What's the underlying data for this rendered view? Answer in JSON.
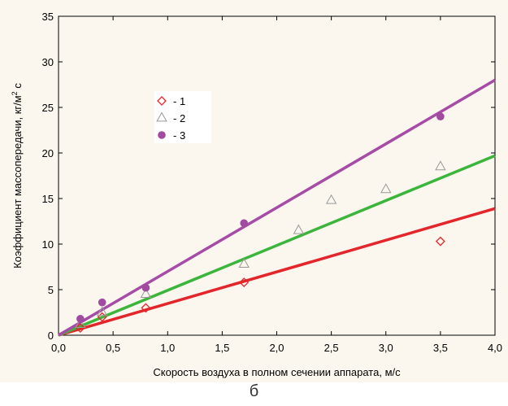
{
  "chart_data": {
    "type": "scatter",
    "xlabel": "Скорость воздуха в полном сечении аппарата, м/с",
    "ylabel": "Коэффициент массопередачи, кг/м",
    "ylabel_sup": "2",
    "ylabel_suffix": "с",
    "xlim": [
      0,
      4
    ],
    "ylim": [
      0,
      35
    ],
    "x_ticks": [
      "0,0",
      "0,5",
      "1,0",
      "1,5",
      "2,0",
      "2,5",
      "3,0",
      "3,5",
      "4,0"
    ],
    "y_ticks": [
      "0",
      "5",
      "10",
      "15",
      "20",
      "25",
      "30",
      "35"
    ],
    "legend_position": "upper-left",
    "grid": false,
    "series": [
      {
        "name": "- 1",
        "marker": "diamond-open",
        "color": "#e8242a",
        "points": [
          [
            0.2,
            0.8
          ],
          [
            0.4,
            2.0
          ],
          [
            0.8,
            3.0
          ],
          [
            1.7,
            5.8
          ],
          [
            3.5,
            10.3
          ]
        ],
        "fit": [
          [
            0,
            0
          ],
          [
            4,
            13.9
          ]
        ]
      },
      {
        "name": "- 2",
        "marker": "triangle-open",
        "color": "#999999",
        "points": [
          [
            0.2,
            1.2
          ],
          [
            0.4,
            2.5
          ],
          [
            0.8,
            4.5
          ],
          [
            1.7,
            7.8
          ],
          [
            2.2,
            11.5
          ],
          [
            2.5,
            14.8
          ],
          [
            3.0,
            16.0
          ],
          [
            3.5,
            18.5
          ]
        ],
        "fit": [
          [
            0,
            0
          ],
          [
            4,
            19.7
          ]
        ]
      },
      {
        "name": "- 3",
        "marker": "circle-filled",
        "color": "#a04aa0",
        "points": [
          [
            0.2,
            1.8
          ],
          [
            0.4,
            3.6
          ],
          [
            0.8,
            5.2
          ],
          [
            1.7,
            12.3
          ],
          [
            3.5,
            24.0
          ]
        ],
        "fit": [
          [
            0,
            0
          ],
          [
            4,
            28.0
          ]
        ]
      }
    ],
    "fit_colors": [
      "#e3262b",
      "#3cb53c",
      "#a64ca6"
    ]
  },
  "caption": "б"
}
